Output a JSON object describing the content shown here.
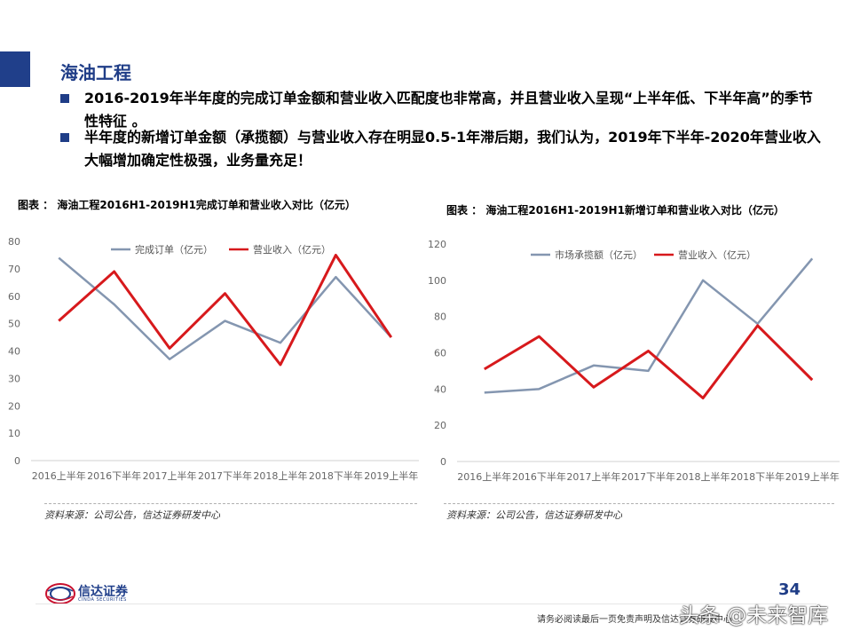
{
  "slide": {
    "title": "海油工程",
    "bullets": [
      "2016-2019年半年度的完成订单金额和营业收入匹配度也非常高，并且营业收入呈现“上半年低、下半年高”的季节性特征 。",
      "半年度的新增订单金额（承揽额）与营业收入存在明显0.5-1年滞后期，我们认为，2019年下半年-2020年营业收入大幅增加确定性极强，业务量充足！"
    ],
    "logo_name": "信达证券",
    "logo_sub": "CINDA SECURITIES",
    "page_number": "34",
    "disclaimer": "请务必阅读最后一页免责声明及信达证券研发中心",
    "watermark": "头条 @未来智库"
  },
  "chart_data": [
    {
      "type": "line",
      "title": "图表 ： 海油工程2016H1-2019H1完成订单和营业收入对比（亿元）",
      "categories": [
        "2016上半年",
        "2016下半年",
        "2017上半年",
        "2017下半年",
        "2018上半年",
        "2018下半年",
        "2019上半年"
      ],
      "ylim": [
        0,
        80
      ],
      "yticks": [
        0,
        10,
        20,
        30,
        40,
        50,
        60,
        70,
        80
      ],
      "grid": false,
      "legend_position": "top",
      "series": [
        {
          "name": "完成订单（亿元）",
          "color": "#8496b0",
          "values": [
            74,
            57,
            37,
            51,
            43,
            67,
            45
          ]
        },
        {
          "name": "营业收入（亿元）",
          "color": "#d7191c",
          "values": [
            51,
            69,
            41,
            61,
            35,
            75,
            45
          ]
        }
      ],
      "source": "资料来源：公司公告，信达证券研发中心"
    },
    {
      "type": "line",
      "title": "图表 ： 海油工程2016H1-2019H1新增订单和营业收入对比（亿元）",
      "categories": [
        "2016上半年",
        "2016下半年",
        "2017上半年",
        "2017下半年",
        "2018上半年",
        "2018下半年",
        "2019上半年"
      ],
      "ylim": [
        0,
        120
      ],
      "yticks": [
        0,
        20,
        40,
        60,
        80,
        100,
        120
      ],
      "grid": false,
      "legend_position": "top",
      "series": [
        {
          "name": "市场承揽额（亿元）",
          "color": "#8496b0",
          "values": [
            38,
            40,
            53,
            50,
            100,
            76,
            112
          ]
        },
        {
          "name": "营业收入（亿元）",
          "color": "#d7191c",
          "values": [
            51,
            69,
            41,
            61,
            35,
            75,
            45
          ]
        }
      ],
      "source": "资料来源：公司公告，信达证券研发中心"
    }
  ]
}
